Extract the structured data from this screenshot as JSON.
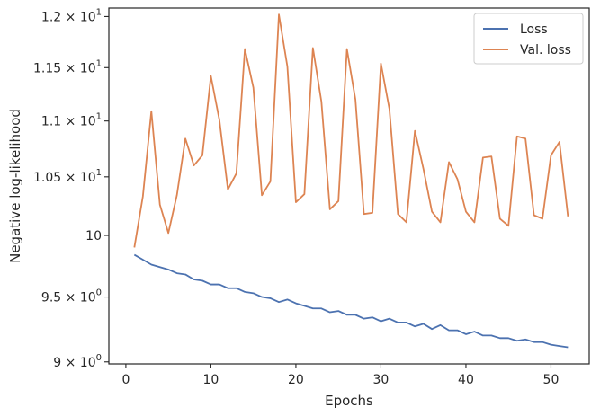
{
  "chart_data": {
    "type": "line",
    "xlabel": "Epochs",
    "ylabel": "Negative log-likelihood",
    "xlim": [
      -2,
      54.5
    ],
    "ylim": [
      8.985,
      12.085
    ],
    "yscale": "log",
    "grid": false,
    "legend_position": "top-right",
    "x_ticks": [
      0,
      10,
      20,
      30,
      40,
      50
    ],
    "y_ticks": [
      {
        "value": 9.0,
        "mantissa": "9",
        "exp": "0"
      },
      {
        "value": 9.5,
        "mantissa": "9.5",
        "exp": "0"
      },
      {
        "value": 10.0,
        "mantissa": "10",
        "exp": ""
      },
      {
        "value": 10.5,
        "mantissa": "1.05",
        "exp": "1"
      },
      {
        "value": 11.0,
        "mantissa": "1.1",
        "exp": "1"
      },
      {
        "value": 11.5,
        "mantissa": "1.15",
        "exp": "1"
      },
      {
        "value": 12.0,
        "mantissa": "1.2",
        "exp": "1"
      }
    ],
    "x": [
      1,
      2,
      3,
      4,
      5,
      6,
      7,
      8,
      9,
      10,
      11,
      12,
      13,
      14,
      15,
      16,
      17,
      18,
      19,
      20,
      21,
      22,
      23,
      24,
      25,
      26,
      27,
      28,
      29,
      30,
      31,
      32,
      33,
      34,
      35,
      36,
      37,
      38,
      39,
      40,
      41,
      42,
      43,
      44,
      45,
      46,
      47,
      48,
      49,
      50,
      51,
      52
    ],
    "series": [
      {
        "name": "Loss",
        "color": "#4c72b0",
        "values": [
          9.84,
          9.8,
          9.76,
          9.74,
          9.72,
          9.69,
          9.68,
          9.64,
          9.63,
          9.6,
          9.6,
          9.57,
          9.57,
          9.54,
          9.53,
          9.5,
          9.49,
          9.46,
          9.48,
          9.45,
          9.43,
          9.41,
          9.41,
          9.38,
          9.39,
          9.36,
          9.36,
          9.33,
          9.34,
          9.31,
          9.33,
          9.3,
          9.3,
          9.27,
          9.29,
          9.25,
          9.28,
          9.24,
          9.24,
          9.21,
          9.23,
          9.2,
          9.2,
          9.18,
          9.18,
          9.16,
          9.17,
          9.15,
          9.15,
          9.13,
          9.12,
          9.11
        ]
      },
      {
        "name": "Val. loss",
        "color": "#dd8452",
        "values": [
          9.9,
          10.33,
          11.09,
          10.26,
          10.02,
          10.34,
          10.84,
          10.6,
          10.69,
          11.42,
          11.01,
          10.39,
          10.53,
          11.68,
          11.31,
          10.34,
          10.46,
          12.02,
          11.51,
          10.28,
          10.35,
          11.69,
          11.18,
          10.22,
          10.29,
          11.68,
          11.2,
          10.18,
          10.19,
          11.54,
          11.11,
          10.18,
          10.11,
          10.91,
          10.57,
          10.2,
          10.11,
          10.63,
          10.48,
          10.2,
          10.11,
          10.67,
          10.68,
          10.14,
          10.08,
          10.86,
          10.84,
          10.17,
          10.14,
          10.69,
          10.81,
          10.16
        ]
      }
    ]
  }
}
